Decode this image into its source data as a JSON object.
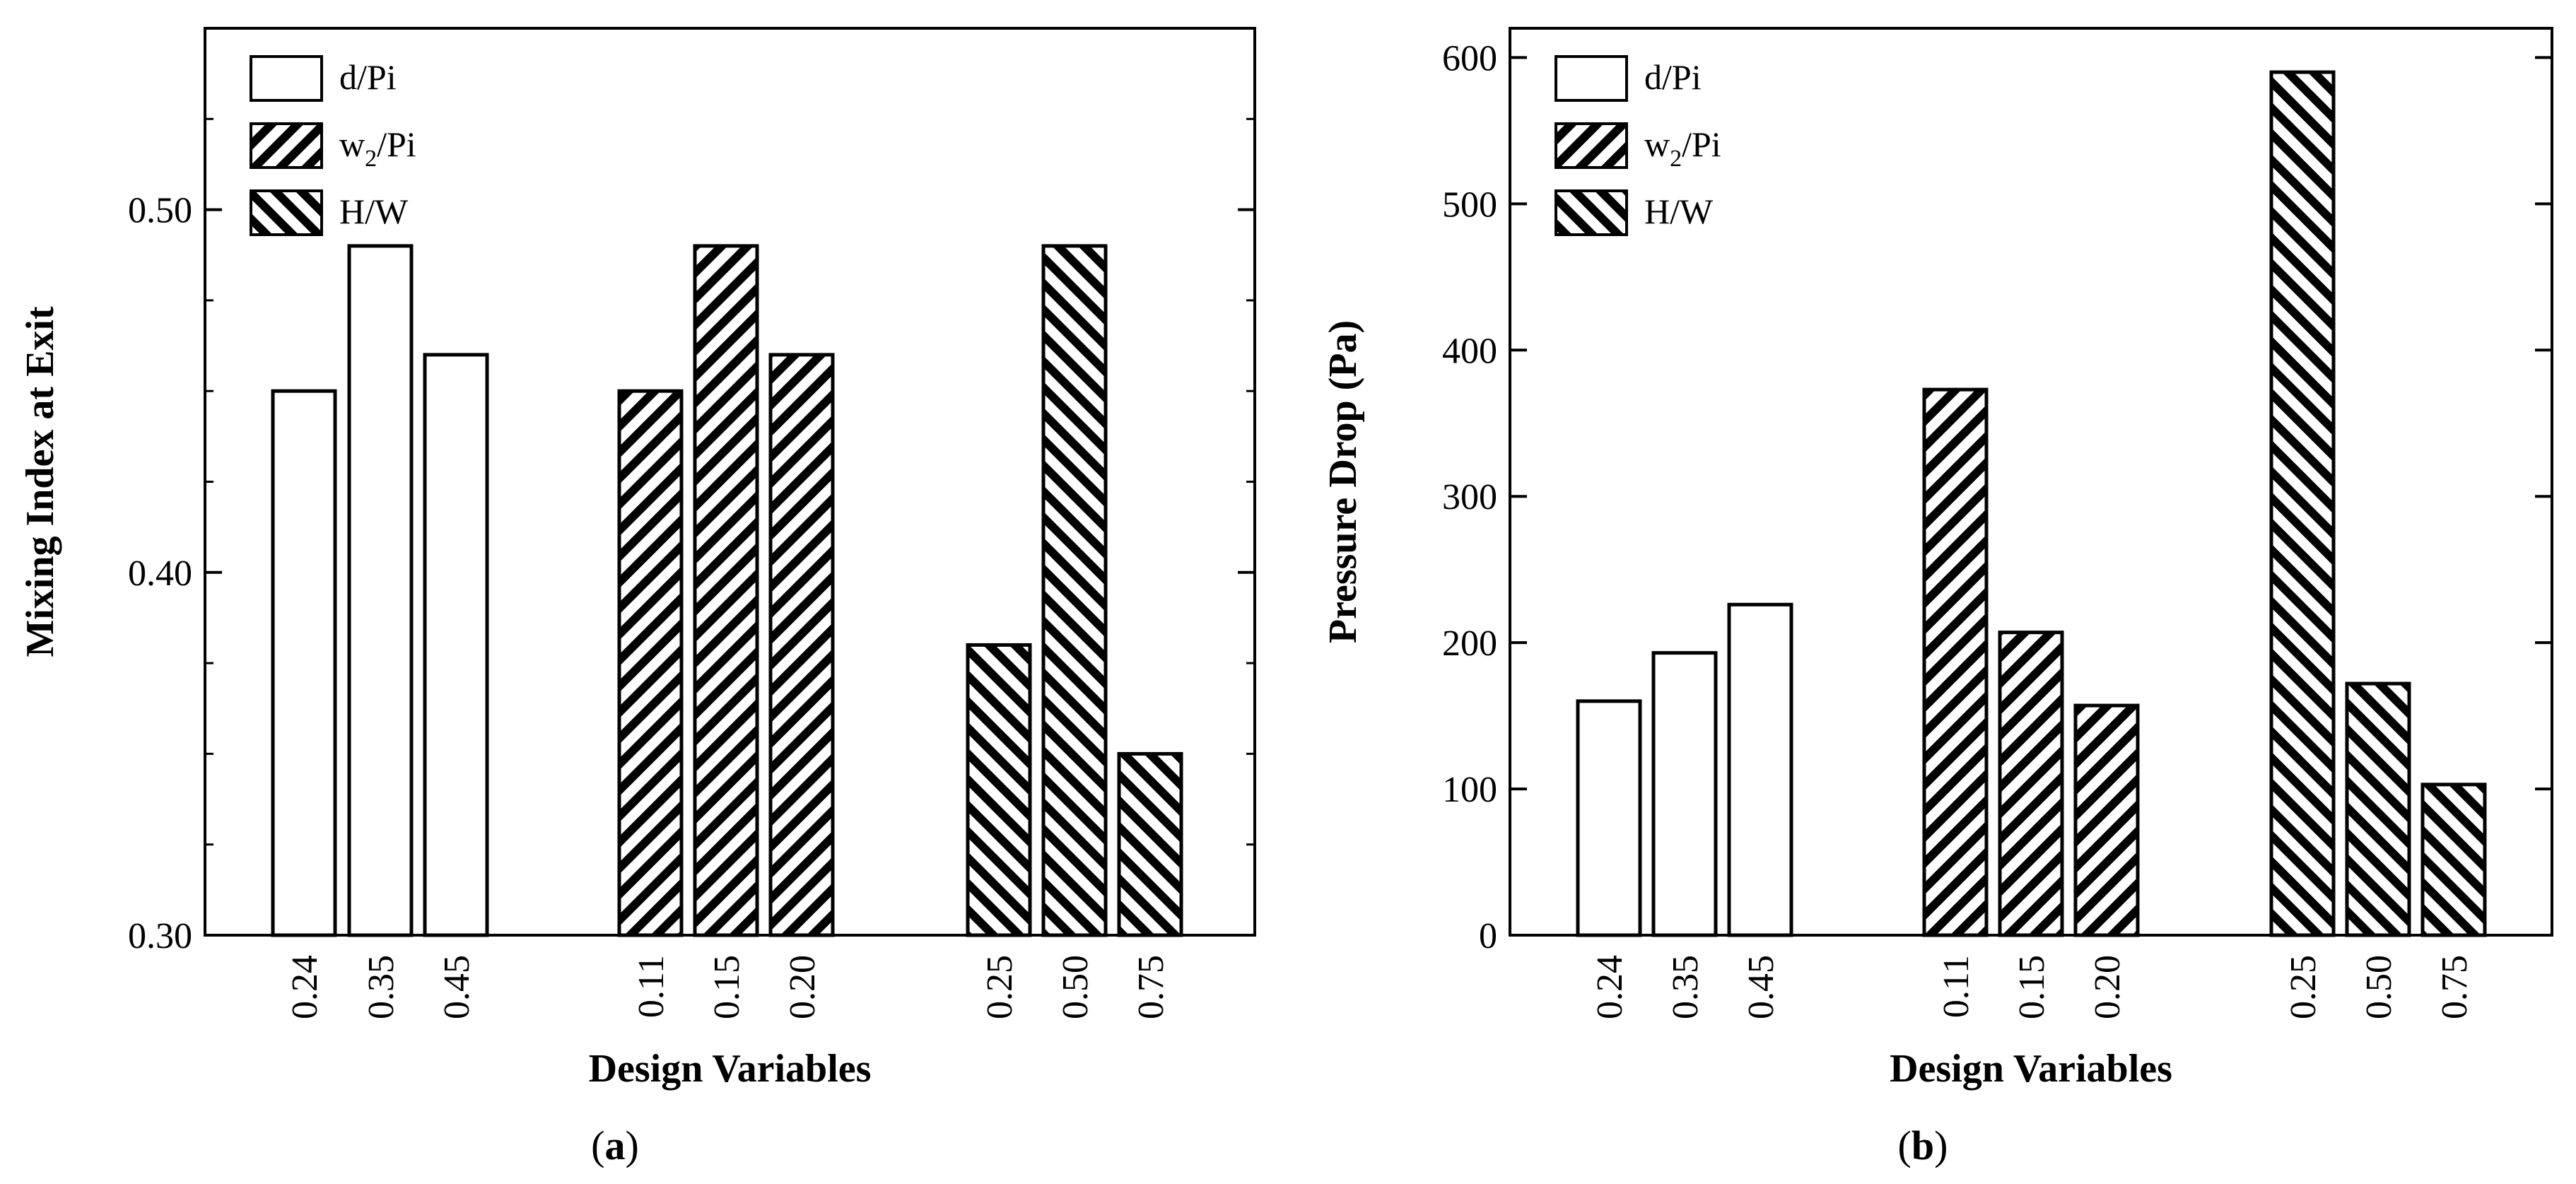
{
  "chart_data": [
    {
      "type": "bar",
      "panel": "(a)",
      "panel_letter": "a",
      "xlabel": "Design Variables",
      "ylabel": "Mixing Index at Exit",
      "ylim": [
        0.3,
        0.55
      ],
      "yticks": [
        "0.30",
        "0.40",
        "0.50"
      ],
      "ytick_values": [
        0.3,
        0.4,
        0.5
      ],
      "legend_position": "top-left",
      "groups": [
        {
          "name": "d/Pi",
          "pattern": "none",
          "categories": [
            "0.24",
            "0.35",
            "0.45"
          ],
          "values": [
            0.45,
            0.49,
            0.46
          ]
        },
        {
          "name": "w2/Pi",
          "pattern": "forward-hatch",
          "categories": [
            "0.11",
            "0.15",
            "0.20"
          ],
          "values": [
            0.45,
            0.49,
            0.46
          ]
        },
        {
          "name": "H/W",
          "pattern": "back-hatch",
          "categories": [
            "0.25",
            "0.50",
            "0.75"
          ],
          "values": [
            0.38,
            0.49,
            0.35
          ]
        }
      ]
    },
    {
      "type": "bar",
      "panel": "(b)",
      "panel_letter": "b",
      "xlabel": "Design Variables",
      "ylabel": "Pressure Drop (Pa)",
      "ylim": [
        0,
        620
      ],
      "yticks": [
        "0",
        "100",
        "200",
        "300",
        "400",
        "500",
        "600"
      ],
      "ytick_values": [
        0,
        100,
        200,
        300,
        400,
        500,
        600
      ],
      "legend_position": "top-left",
      "groups": [
        {
          "name": "d/Pi",
          "pattern": "none",
          "categories": [
            "0.24",
            "0.35",
            "0.45"
          ],
          "values": [
            160,
            193,
            226
          ]
        },
        {
          "name": "w2/Pi",
          "pattern": "forward-hatch",
          "categories": [
            "0.11",
            "0.15",
            "0.20"
          ],
          "values": [
            373,
            207,
            157
          ]
        },
        {
          "name": "H/W",
          "pattern": "back-hatch",
          "categories": [
            "0.25",
            "0.50",
            "0.75"
          ],
          "values": [
            590,
            172,
            103
          ]
        }
      ]
    }
  ],
  "legend": [
    {
      "label": "d/Pi",
      "main": "d/Pi",
      "sub": "",
      "rest": "",
      "pattern": "none"
    },
    {
      "label": "w2/Pi",
      "main": "w",
      "sub": "2",
      "rest": "/Pi",
      "pattern": "forward-hatch"
    },
    {
      "label": "H/W",
      "main": "H/W",
      "sub": "",
      "rest": "",
      "pattern": "back-hatch"
    }
  ],
  "colors": {
    "stroke": "#000000",
    "fill": "#ffffff",
    "hatch": "#000000"
  }
}
